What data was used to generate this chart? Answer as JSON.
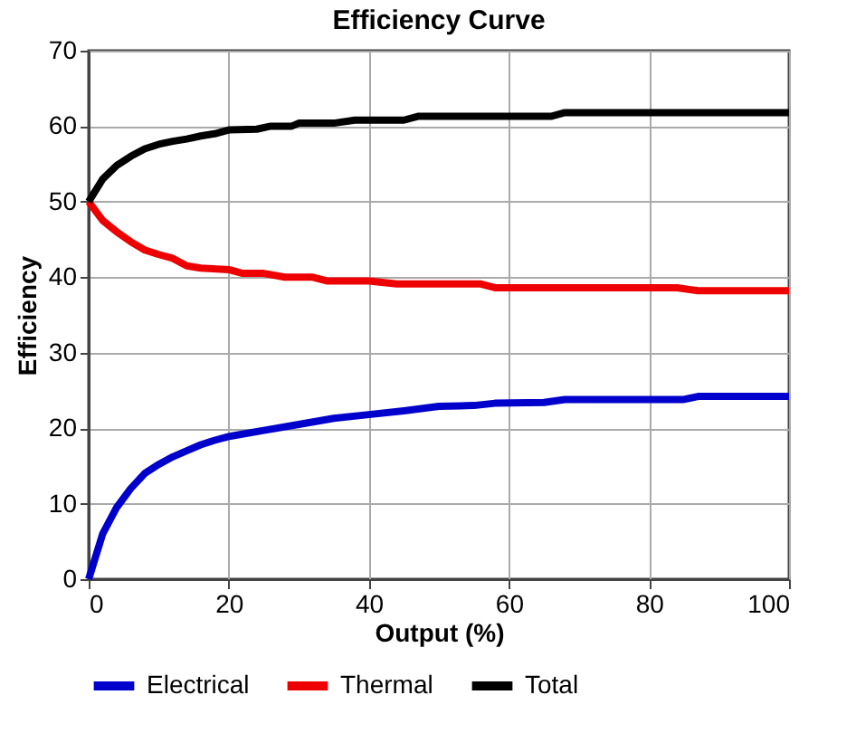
{
  "chart_data": {
    "type": "line",
    "title": "Efficiency Curve",
    "xlabel": "Output (%)",
    "ylabel": "Efficiency",
    "xlim": [
      0,
      100
    ],
    "xticks": [
      0,
      20,
      40,
      60,
      80,
      100
    ],
    "ylim": [
      0,
      70
    ],
    "yticks": [
      0,
      10,
      20,
      30,
      40,
      50,
      60,
      70
    ],
    "grid": true,
    "legend": "bottom",
    "marker": "none",
    "line_style": "solid",
    "series": [
      {
        "name": "Electrical",
        "color": "#0000cc",
        "x": [
          0,
          2,
          4,
          6,
          8,
          10,
          12,
          14,
          16,
          18,
          20,
          25,
          30,
          35,
          40,
          45,
          50,
          55,
          58,
          65,
          68,
          85,
          87,
          100
        ],
        "values": [
          0,
          6,
          9.5,
          12,
          14,
          15.2,
          16.2,
          17,
          17.8,
          18.4,
          18.9,
          19.7,
          20.5,
          21.3,
          21.8,
          22.3,
          22.9,
          23,
          23.3,
          23.4,
          23.8,
          23.8,
          24.2,
          24.2
        ]
      },
      {
        "name": "Thermal",
        "color": "#ee0000",
        "x": [
          0,
          2,
          4,
          6,
          8,
          10,
          12,
          14,
          16,
          20,
          22,
          25,
          28,
          32,
          34,
          40,
          44,
          56,
          58,
          65,
          84,
          87,
          100
        ],
        "values": [
          50,
          47.5,
          46,
          44.7,
          43.6,
          43,
          42.5,
          41.5,
          41.2,
          41,
          40.5,
          40.5,
          40,
          40,
          39.5,
          39.5,
          39.1,
          39.1,
          38.6,
          38.6,
          38.6,
          38.2,
          38.2
        ]
      },
      {
        "name": "Total",
        "color": "#000000",
        "x": [
          0,
          2,
          4,
          6,
          8,
          10,
          12,
          14,
          16,
          18,
          20,
          24,
          26,
          29,
          30,
          35,
          38,
          45,
          47,
          60,
          66,
          68,
          100
        ],
        "values": [
          50,
          53,
          54.8,
          56,
          57,
          57.6,
          58,
          58.3,
          58.7,
          59,
          59.5,
          59.6,
          60,
          60,
          60.4,
          60.4,
          60.8,
          60.8,
          61.3,
          61.3,
          61.3,
          61.8,
          61.8
        ]
      }
    ]
  }
}
